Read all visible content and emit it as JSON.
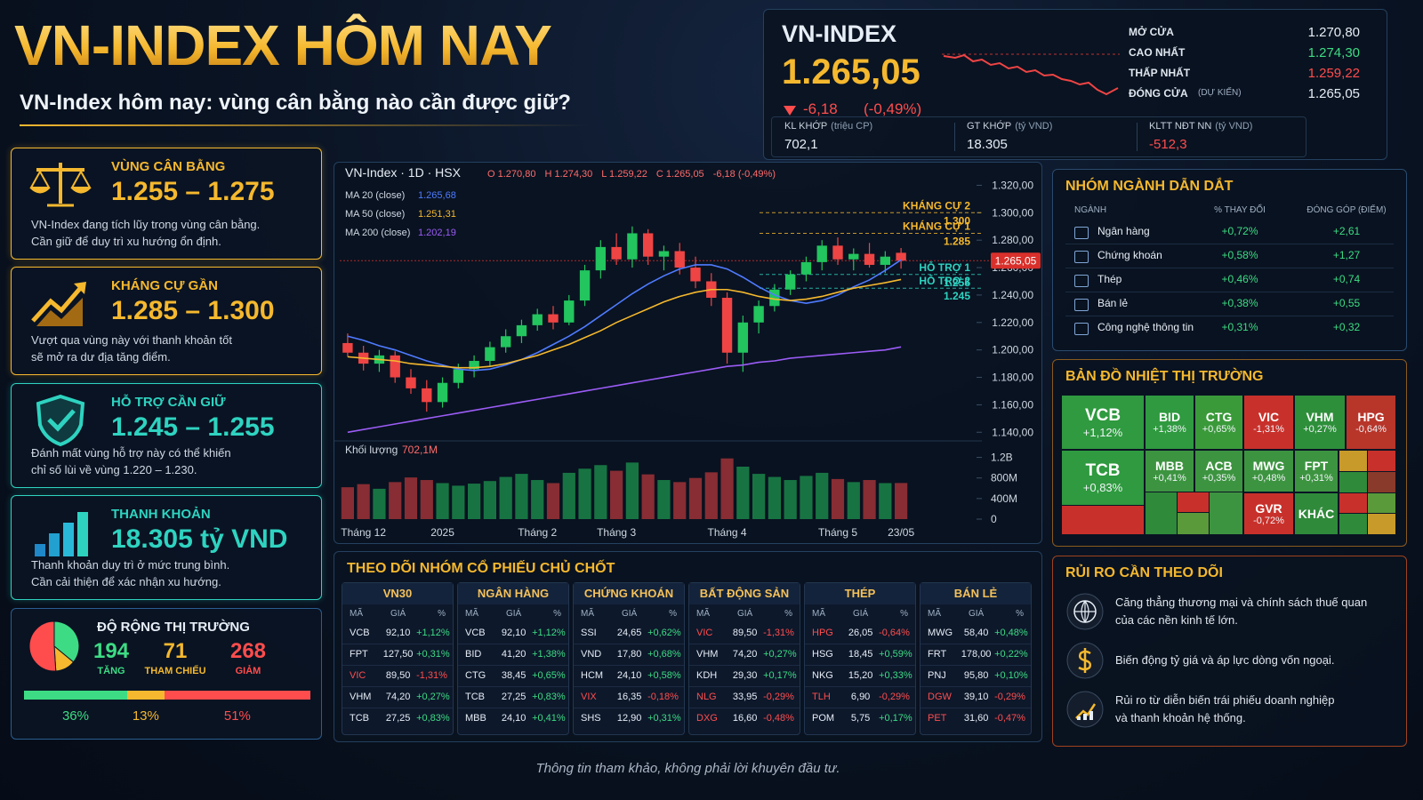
{
  "header": {
    "title": "VN-INDEX HÔM NAY",
    "subtitle": "VN-Index hôm nay: vùng cân bằng nào cần được giữ?"
  },
  "index_box": {
    "name": "VN-INDEX",
    "value": "1.265,05",
    "change": "-6,18",
    "change_pct": "(-0,49%)",
    "stats": [
      {
        "label": "MỞ CỬA",
        "value": "1.270,80",
        "color": "#e6edf5"
      },
      {
        "label": "CAO NHẤT",
        "value": "1.274,30",
        "color": "#3ddc84"
      },
      {
        "label": "THẤP NHẤT",
        "value": "1.259,22",
        "color": "#ff4d4d"
      },
      {
        "label": "ĐÓNG CỬA",
        "note": "(DỰ KIẾN)",
        "value": "1.265,05",
        "color": "#e6edf5"
      }
    ],
    "flows": [
      {
        "label": "KL KHỚP",
        "unit": "(triệu CP)",
        "value": "702,1",
        "color": "#e6edf5"
      },
      {
        "label": "GT KHỚP",
        "unit": "(tỷ VND)",
        "value": "18.305",
        "color": "#e6edf5"
      },
      {
        "label": "KLTT NĐT NN",
        "unit": "(tỷ VND)",
        "value": "-512,3",
        "color": "#ff4d4d"
      }
    ]
  },
  "cards": [
    {
      "title": "VÙNG CÂN BẰNG",
      "value": "1.255 – 1.275",
      "desc": [
        "VN-Index đang tích lũy trong vùng cân bằng.",
        "Cần giữ để duy trì xu hướng ổn định."
      ],
      "color": "#f5b82e"
    },
    {
      "title": "KHÁNG CỰ GẦN",
      "value": "1.285 – 1.300",
      "desc": [
        "Vượt qua vùng này với thanh khoản tốt",
        "sẽ mở ra dư địa tăng điểm."
      ],
      "color": "#f5b82e"
    },
    {
      "title": "HỖ TRỢ CẦN GIỮ",
      "value": "1.245 – 1.255",
      "desc": [
        "Đánh mất vùng hỗ trợ này có thể khiến",
        "chỉ số lùi về vùng 1.220 – 1.230."
      ],
      "color": "#2ed3c0"
    },
    {
      "title": "THANH KHOẢN",
      "value": "18.305 tỷ VND",
      "desc": [
        "Thanh khoản duy trì ở mức trung bình.",
        "Cần cải thiện để xác nhận xu hướng."
      ],
      "color": "#2ed3c0"
    }
  ],
  "breadth": {
    "title": "ĐỘ RỘNG THỊ TRƯỜNG",
    "items": [
      {
        "count": 194,
        "label": "TĂNG",
        "share": 36,
        "share_label": "36%",
        "color": "#3ddc84"
      },
      {
        "count": 71,
        "label": "THAM CHIẾU",
        "share": 13,
        "share_label": "13%",
        "color": "#f5b82e"
      },
      {
        "count": 268,
        "label": "GIẢM",
        "share": 51,
        "share_label": "51%",
        "color": "#ff4d4d"
      }
    ]
  },
  "chart_data": {
    "type": "candlestick",
    "title": "VN-Index · 1D · HSX",
    "ohlc_labels": [
      "O 1.270,80",
      "H 1.274,30",
      "L 1.259,22",
      "C 1.265,05",
      "-6,18 (-0,49%)"
    ],
    "categories": [
      null,
      "Tháng 12",
      null,
      null,
      null,
      null,
      "2025",
      null,
      null,
      null,
      null,
      null,
      "Tháng 2",
      null,
      null,
      null,
      null,
      "Tháng 3",
      null,
      null,
      null,
      null,
      null,
      null,
      "Tháng 4",
      null,
      null,
      null,
      null,
      null,
      null,
      "Tháng 5",
      null,
      null,
      null,
      "23/05"
    ],
    "candles": {
      "open": [
        1205,
        1198,
        1190,
        1196,
        1180,
        1172,
        1162,
        1176,
        1186,
        1192,
        1202,
        1210,
        1218,
        1226,
        1220,
        1236,
        1258,
        1275,
        1266,
        1285,
        1268,
        1272,
        1260,
        1250,
        1238,
        1198,
        1220,
        1232,
        1244,
        1255,
        1264,
        1276,
        1266,
        1270,
        1262,
        1270.8
      ],
      "high": [
        1212,
        1203,
        1200,
        1199,
        1186,
        1178,
        1180,
        1190,
        1196,
        1206,
        1215,
        1222,
        1230,
        1232,
        1240,
        1262,
        1280,
        1285,
        1290,
        1288,
        1276,
        1278,
        1268,
        1256,
        1242,
        1225,
        1236,
        1248,
        1258,
        1268,
        1280,
        1282,
        1274,
        1278,
        1272,
        1274.3
      ],
      "low": [
        1195,
        1185,
        1184,
        1176,
        1168,
        1155,
        1158,
        1172,
        1180,
        1188,
        1198,
        1205,
        1214,
        1215,
        1218,
        1232,
        1252,
        1262,
        1260,
        1262,
        1258,
        1255,
        1245,
        1232,
        1190,
        1184,
        1212,
        1228,
        1240,
        1250,
        1258,
        1262,
        1258,
        1260,
        1256,
        1259.22
      ],
      "close": [
        1198,
        1190,
        1196,
        1180,
        1172,
        1162,
        1176,
        1186,
        1192,
        1202,
        1210,
        1218,
        1226,
        1220,
        1236,
        1258,
        1275,
        1266,
        1285,
        1268,
        1272,
        1260,
        1250,
        1238,
        1198,
        1220,
        1232,
        1244,
        1255,
        1264,
        1276,
        1266,
        1270,
        1262,
        1268,
        1265.05
      ]
    },
    "up_color": "#22c55e",
    "down_color": "#ef4444",
    "series": [
      {
        "name": "MA 20 (close)",
        "color": "#4f7bff",
        "last_label": "1.265,68",
        "values": [
          1210,
          1207,
          1203,
          1200,
          1196,
          1192,
          1189,
          1186,
          1185,
          1186,
          1189,
          1193,
          1198,
          1204,
          1210,
          1217,
          1225,
          1233,
          1241,
          1248,
          1254,
          1259,
          1262,
          1262,
          1259,
          1253,
          1246,
          1240,
          1236,
          1234,
          1236,
          1240,
          1246,
          1251,
          1258,
          1265.68
        ]
      },
      {
        "name": "MA 50 (close)",
        "color": "#f5b82e",
        "last_label": "1.251,31",
        "values": [
          1195,
          1194,
          1193,
          1192,
          1190,
          1189,
          1188,
          1187,
          1187,
          1188,
          1190,
          1193,
          1196,
          1200,
          1204,
          1209,
          1214,
          1220,
          1225,
          1230,
          1235,
          1239,
          1242,
          1244,
          1244,
          1242,
          1239,
          1237,
          1236,
          1237,
          1239,
          1242,
          1245,
          1247,
          1249,
          1251.31
        ]
      },
      {
        "name": "MA 200 (close)",
        "color": "#9b5cf6",
        "last_label": "1.202,19",
        "values": [
          1140,
          1142,
          1144,
          1146,
          1148,
          1150,
          1152,
          1154,
          1156,
          1158,
          1160,
          1162,
          1164,
          1166,
          1168,
          1170,
          1172,
          1174,
          1176,
          1178,
          1180,
          1182,
          1184,
          1186,
          1188,
          1189,
          1191,
          1192,
          1194,
          1195,
          1196,
          1197,
          1198,
          1199,
          1200,
          1202.19
        ]
      }
    ],
    "ylim": [
      1135,
      1330
    ],
    "yticks": [
      {
        "value": 1140,
        "label": "1.140,00"
      },
      {
        "value": 1160,
        "label": "1.160,00"
      },
      {
        "value": 1180,
        "label": "1.180,00"
      },
      {
        "value": 1200,
        "label": "1.200,00"
      },
      {
        "value": 1220,
        "label": "1.220,00"
      },
      {
        "value": 1240,
        "label": "1.240,00"
      },
      {
        "value": 1260,
        "label": "1.260,00"
      },
      {
        "value": 1280,
        "label": "1.280,00"
      },
      {
        "value": 1300,
        "label": "1.300,00"
      },
      {
        "value": 1320,
        "label": "1.320,00"
      }
    ],
    "grid": false,
    "levels": [
      {
        "label": "KHÁNG CỰ 2",
        "value": 1300,
        "value_label": "1.300",
        "color": "#f5b82e"
      },
      {
        "label": "KHÁNG CỰ 1",
        "value": 1285,
        "value_label": "1.285",
        "color": "#f5b82e"
      },
      {
        "label": "HỖ TRỢ 1",
        "value": 1255,
        "value_label": "1.255",
        "color": "#2ed3c0"
      },
      {
        "label": "HỖ TRỢ 2",
        "value": 1245,
        "value_label": "1.245",
        "color": "#2ed3c0"
      }
    ],
    "last_price": {
      "value": 1265.05,
      "label": "1.265,05",
      "color": "#d9302b"
    },
    "volume": {
      "name": "Khối lượng",
      "last_label": "702,1M",
      "values": [
        620,
        680,
        590,
        720,
        810,
        760,
        700,
        650,
        690,
        740,
        820,
        880,
        760,
        700,
        900,
        980,
        1050,
        940,
        1100,
        870,
        760,
        720,
        800,
        910,
        1180,
        1020,
        880,
        820,
        760,
        840,
        900,
        780,
        720,
        760,
        700,
        702.1
      ]
    },
    "volume_ylim": [
      0,
      1400
    ],
    "volume_ticks": [
      0,
      {
        "value": 400,
        "label": "400M"
      },
      {
        "value": 800,
        "label": "800M"
      },
      {
        "value": 1200,
        "label": "1.2B"
      }
    ]
  },
  "key_stocks": {
    "title": "THEO DÕI NHÓM CỔ PHIẾU CHỦ CHỐT",
    "columns": [
      "MÃ",
      "GIÁ",
      "%"
    ],
    "groups": [
      {
        "name": "VN30",
        "rows": [
          [
            "VCB",
            "92,10",
            "+1,12%"
          ],
          [
            "FPT",
            "127,50",
            "+0,31%"
          ],
          [
            "VIC",
            "89,50",
            "-1,31%"
          ],
          [
            "VHM",
            "74,20",
            "+0,27%"
          ],
          [
            "TCB",
            "27,25",
            "+0,83%"
          ]
        ]
      },
      {
        "name": "NGÂN HÀNG",
        "rows": [
          [
            "VCB",
            "92,10",
            "+1,12%"
          ],
          [
            "BID",
            "41,20",
            "+1,38%"
          ],
          [
            "CTG",
            "38,45",
            "+0,65%"
          ],
          [
            "TCB",
            "27,25",
            "+0,83%"
          ],
          [
            "MBB",
            "24,10",
            "+0,41%"
          ]
        ]
      },
      {
        "name": "CHỨNG KHOÁN",
        "rows": [
          [
            "SSI",
            "24,65",
            "+0,62%"
          ],
          [
            "VND",
            "17,80",
            "+0,68%"
          ],
          [
            "HCM",
            "24,10",
            "+0,58%"
          ],
          [
            "VIX",
            "16,35",
            "-0,18%"
          ],
          [
            "SHS",
            "12,90",
            "+0,31%"
          ]
        ]
      },
      {
        "name": "BẤT ĐỘNG SẢN",
        "rows": [
          [
            "VIC",
            "89,50",
            "-1,31%"
          ],
          [
            "VHM",
            "74,20",
            "+0,27%"
          ],
          [
            "KDH",
            "29,30",
            "+0,17%"
          ],
          [
            "NLG",
            "33,95",
            "-0,29%"
          ],
          [
            "DXG",
            "16,60",
            "-0,48%"
          ]
        ]
      },
      {
        "name": "THÉP",
        "rows": [
          [
            "HPG",
            "26,05",
            "-0,64%"
          ],
          [
            "HSG",
            "18,45",
            "+0,59%"
          ],
          [
            "NKG",
            "15,20",
            "+0,33%"
          ],
          [
            "TLH",
            "6,90",
            "-0,29%"
          ],
          [
            "POM",
            "5,75",
            "+0,17%"
          ]
        ]
      },
      {
        "name": "BÁN LẺ",
        "rows": [
          [
            "MWG",
            "58,40",
            "+0,48%"
          ],
          [
            "FRT",
            "178,00",
            "+0,22%"
          ],
          [
            "PNJ",
            "95,80",
            "+0,10%"
          ],
          [
            "DGW",
            "39,10",
            "-0,29%"
          ],
          [
            "PET",
            "31,60",
            "-0,47%"
          ]
        ]
      }
    ]
  },
  "sectors": {
    "title": "NHÓM NGÀNH DẪN DẮT",
    "columns": [
      "NGÀNH",
      "% THAY ĐỔI",
      "ĐÓNG GÓP (ĐIỂM)"
    ],
    "rows": [
      [
        "Ngân hàng",
        "+0,72%",
        "+2,61"
      ],
      [
        "Chứng khoán",
        "+0,58%",
        "+1,27"
      ],
      [
        "Thép",
        "+0,46%",
        "+0,74"
      ],
      [
        "Bán lẻ",
        "+0,38%",
        "+0,55"
      ],
      [
        "Công nghệ thông tin",
        "+0,31%",
        "+0,32"
      ]
    ]
  },
  "heatmap": {
    "title": "BẢN ĐỒ NHIỆT THỊ TRƯỜNG",
    "tiles": [
      {
        "ticker": "VCB",
        "change": "+1,12%",
        "color": "#2f9a3f"
      },
      {
        "ticker": "BID",
        "change": "+1,38%",
        "color": "#2f9a3f"
      },
      {
        "ticker": "CTG",
        "change": "+0,65%",
        "color": "#3a9a3a"
      },
      {
        "ticker": "VIC",
        "change": "-1,31%",
        "color": "#c8312b"
      },
      {
        "ticker": "VHM",
        "change": "+0,27%",
        "color": "#2e8f3a"
      },
      {
        "ticker": "HPG",
        "change": "-0,64%",
        "color": "#b8352a"
      },
      {
        "ticker": "TCB",
        "change": "+0,83%",
        "color": "#2f9a3f"
      },
      {
        "ticker": "MBB",
        "change": "+0,41%",
        "color": "#3d9440"
      },
      {
        "ticker": "ACB",
        "change": "+0,35%",
        "color": "#3d9440"
      },
      {
        "ticker": "MWG",
        "change": "+0,48%",
        "color": "#3d9440"
      },
      {
        "ticker": "FPT",
        "change": "+0,31%",
        "color": "#3d9440"
      },
      {
        "ticker": "GVR",
        "change": "-0,72%",
        "color": "#c8312b"
      },
      {
        "ticker": "KHÁC",
        "color": "#2f8a3a"
      }
    ]
  },
  "risks": {
    "title": "RỦI RO CẦN THEO DÕI",
    "items": [
      [
        "Căng thẳng thương mại và chính sách thuế quan",
        "của các nền kinh tế lớn."
      ],
      [
        "Biến động tỷ giá và áp lực dòng vốn ngoại."
      ],
      [
        "Rủi ro từ diễn biến trái phiếu doanh nghiệp",
        "và thanh khoản hệ thống."
      ]
    ]
  },
  "footer": "Thông tin tham khảo, không phải lời khuyên đầu tư."
}
